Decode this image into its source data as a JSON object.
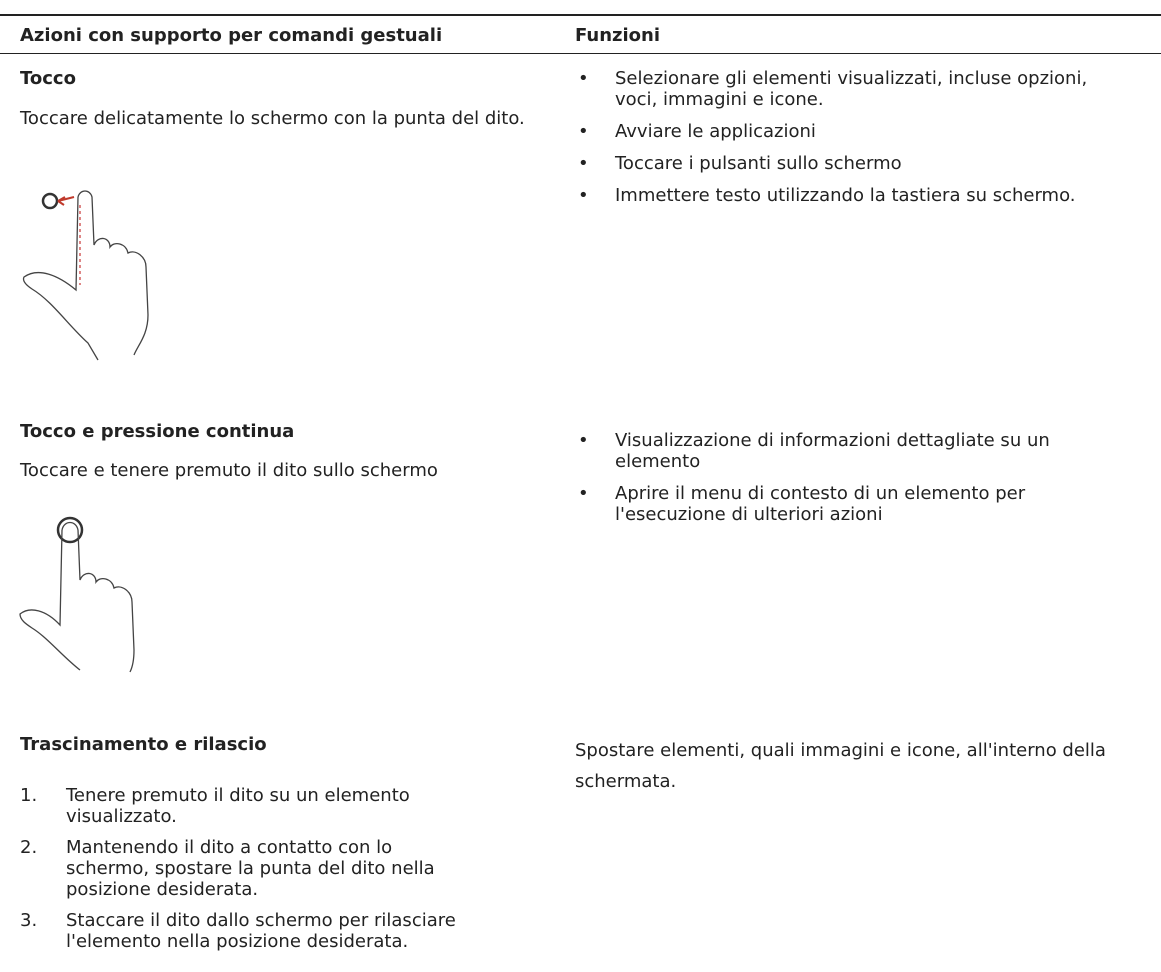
{
  "table": {
    "headers": [
      "Azioni con supporto per comandi gestuali",
      "Funzioni"
    ],
    "rows": [
      {
        "title": "Tocco",
        "description": "Toccare delicatamente lo schermo con la punta del dito.",
        "functions": [
          "Selezionare gli elementi visualizzati, incluse opzioni, voci, immagini e icone.",
          "Avviare le applicazioni",
          "Toccare i pulsanti sullo schermo",
          "Immettere testo utilizzando la tastiera su schermo."
        ]
      },
      {
        "title": "Tocco e pressione continua",
        "description": "Toccare e tenere premuto il dito sullo schermo",
        "functions": [
          "Visualizzazione di informazioni dettagliate su un elemento",
          "Aprire il menu di contesto di un elemento per l'esecuzione di ulteriori azioni"
        ]
      },
      {
        "title": "Trascinamento e rilascio",
        "steps": [
          {
            "number": "1.",
            "text": "Tenere premuto il dito su un elemento visualizzato."
          },
          {
            "number": "2.",
            "text": "Mantenendo il dito a contatto con lo schermo, spostare la punta del dito nella posizione desiderata."
          },
          {
            "number": "3.",
            "text": "Staccare il dito dallo schermo per rilasciare l'elemento nella posizione desiderata."
          }
        ],
        "function_text": "Spostare elementi, quali immagini e icone, all'interno della schermata."
      }
    ]
  }
}
